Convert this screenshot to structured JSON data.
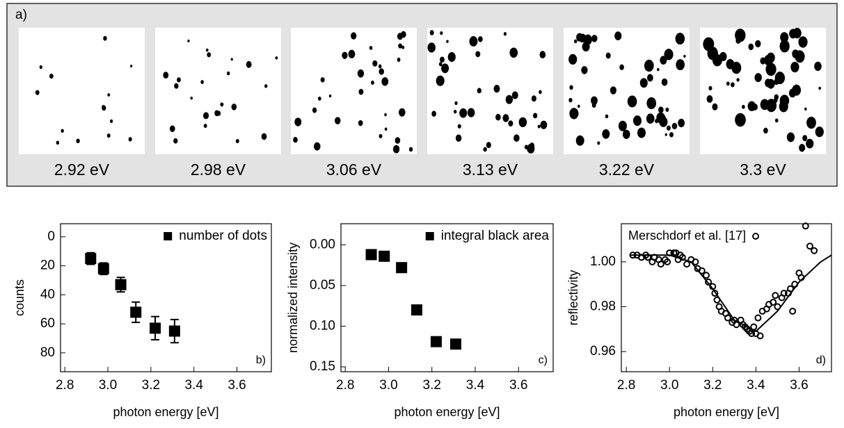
{
  "panel_a": {
    "label": "a)",
    "captions": [
      "2.92 eV",
      "2.98 eV",
      "3.06 eV",
      "3.13 eV",
      "3.22 eV",
      "3.3 eV"
    ]
  },
  "chart_data": [
    {
      "type": "scatter",
      "panel_label": "b)",
      "xlabel": "photon energy [eV]",
      "ylabel": "counts",
      "xlim": [
        2.78,
        3.76
      ],
      "xticks": [
        2.8,
        {
          "value": 3,
          "label": "3.0"
        },
        3.2,
        3.4,
        3.6
      ],
      "ylim": [
        93,
        -9
      ],
      "yticks": [
        0,
        20,
        40,
        60,
        80
      ],
      "legend_loc": "upper right",
      "series": [
        {
          "name": "number of dots",
          "color": "#000000",
          "marker": "square",
          "x": [
            2.92,
            2.98,
            3.06,
            3.13,
            3.22,
            3.31
          ],
          "values": [
            15,
            22,
            33,
            52,
            63,
            65
          ],
          "errors": [
            4,
            4,
            5,
            7,
            8,
            8
          ]
        }
      ]
    },
    {
      "type": "scatter",
      "panel_label": "c)",
      "xlabel": "photon energy [eV]",
      "ylabel": "normalized intensity",
      "xlim": [
        2.78,
        3.76
      ],
      "xticks": [
        2.8,
        {
          "value": 3,
          "label": "3.0"
        },
        3.2,
        3.4,
        3.6
      ],
      "ylim": [
        0.156,
        -0.026
      ],
      "yticks": [
        {
          "value": 0,
          "label": "0.00"
        },
        0.05,
        {
          "value": 0.1,
          "label": "0.10"
        },
        0.15
      ],
      "legend_loc": "upper right",
      "series": [
        {
          "name": "integral black area",
          "color": "#000000",
          "marker": "square",
          "x": [
            2.92,
            2.98,
            3.06,
            3.13,
            3.22,
            3.31
          ],
          "values": [
            0.012,
            0.014,
            0.028,
            0.08,
            0.119,
            0.122
          ]
        }
      ]
    },
    {
      "type": "scatter",
      "panel_label": "d)",
      "xlabel": "photon energy [eV]",
      "ylabel": "reflectivity",
      "xlim": [
        2.777,
        3.75
      ],
      "xticks": [
        2.8,
        {
          "value": 3,
          "label": "3.0"
        },
        3.2,
        3.4,
        3.6
      ],
      "ylim": [
        0.951,
        1.017
      ],
      "yticks": [
        {
          "value": 1,
          "label": "1.00"
        },
        0.98,
        0.96
      ],
      "legend_loc": "upper left",
      "series": [
        {
          "name": "Merschdorf et al. [17]",
          "color": "#000000",
          "marker": "circle",
          "x": [
            2.83,
            2.85,
            2.87,
            2.89,
            2.9,
            2.92,
            2.93,
            2.95,
            2.96,
            2.98,
            2.99,
            3.0,
            3.02,
            3.03,
            3.04,
            3.05,
            3.06,
            3.08,
            3.1,
            3.12,
            3.13,
            3.15,
            3.17,
            3.18,
            3.2,
            3.21,
            3.22,
            3.23,
            3.24,
            3.26,
            3.27,
            3.29,
            3.3,
            3.31,
            3.33,
            3.34,
            3.35,
            3.36,
            3.37,
            3.38,
            3.39,
            3.4,
            3.41,
            3.42,
            3.43,
            3.45,
            3.46,
            3.48,
            3.49,
            3.5,
            3.52,
            3.53,
            3.55,
            3.56,
            3.57,
            3.58,
            3.6,
            3.61,
            3.63,
            3.65,
            3.67
          ],
          "values": [
            1.003,
            1.003,
            1.002,
            1.003,
            1.002,
            1.0,
            1.002,
            1.001,
            0.999,
            1.001,
            1.0,
            1.004,
            1.004,
            1.004,
            1.001,
            1.003,
            1.002,
            0.999,
            1.001,
            1.0,
            0.997,
            0.996,
            0.994,
            0.991,
            0.989,
            0.986,
            0.983,
            0.98,
            0.978,
            0.977,
            0.975,
            0.973,
            0.974,
            0.972,
            0.974,
            0.972,
            0.971,
            0.97,
            0.969,
            0.968,
            0.971,
            0.968,
            0.975,
            0.967,
            0.978,
            0.979,
            0.981,
            0.982,
            0.985,
            0.98,
            0.984,
            0.986,
            0.986,
            0.988,
            0.978,
            0.99,
            0.995,
            0.993,
            1.016,
            1.007,
            1.005
          ]
        },
        {
          "color": "#000000",
          "marker": "line",
          "x": [
            2.82,
            3.0,
            3.1,
            3.2,
            3.3,
            3.4,
            3.5,
            3.6,
            3.7,
            3.75
          ],
          "values": [
            1.003,
            1.003,
            1.0,
            0.988,
            0.974,
            0.969,
            0.978,
            0.991,
            1.0,
            1.003
          ]
        }
      ]
    }
  ]
}
